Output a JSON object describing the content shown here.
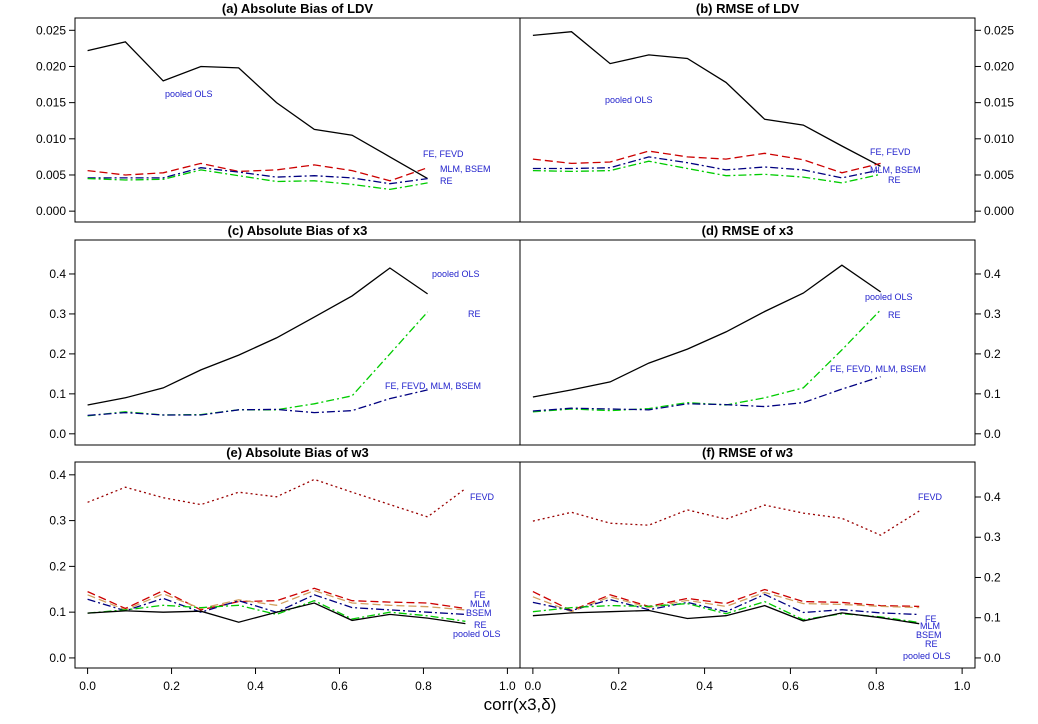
{
  "xlabel": "corr(x3,δ)",
  "chart_data": [
    {
      "type": "line",
      "title": "(a) Absolute Bias of LDV",
      "yaxis_side": "left",
      "xlim": [
        -0.03,
        1.03
      ],
      "ylim": [
        -0.0015,
        0.0267
      ],
      "yticks": [
        {
          "value": 0,
          "label": "0.000"
        },
        {
          "value": 0.005,
          "label": "0.005"
        },
        {
          "value": 0.01,
          "label": "0.010"
        },
        {
          "value": 0.015,
          "label": "0.015"
        },
        {
          "value": 0.02,
          "label": "0.020"
        },
        {
          "value": 0.025,
          "label": "0.025"
        }
      ],
      "x": [
        0,
        0.09,
        0.18,
        0.27,
        0.36,
        0.45,
        0.54,
        0.63,
        0.72,
        0.81
      ],
      "series": [
        {
          "name": "pooled OLS",
          "color": "#000000",
          "linestyle": "solid",
          "values": [
            0.0222,
            0.0234,
            0.018,
            0.02,
            0.0198,
            0.015,
            0.0113,
            0.0105,
            0.0075,
            0.0045
          ]
        },
        {
          "name": "FE, FEVD",
          "color": "#cc0000",
          "linestyle": "dashed",
          "values": [
            0.0056,
            0.005,
            0.0053,
            0.0066,
            0.0055,
            0.0057,
            0.0064,
            0.0056,
            0.0042,
            0.006
          ]
        },
        {
          "name": "MLM, BSEM",
          "color": "#000080",
          "linestyle": "dashdot",
          "values": [
            0.0046,
            0.0046,
            0.0046,
            0.006,
            0.0054,
            0.0047,
            0.0049,
            0.0046,
            0.0038,
            0.0045
          ]
        },
        {
          "name": "RE",
          "color": "#00cc00",
          "linestyle": "dashdot",
          "values": [
            0.0045,
            0.0043,
            0.0044,
            0.0057,
            0.0049,
            0.0041,
            0.0042,
            0.0037,
            0.003,
            0.0039
          ]
        }
      ]
    },
    {
      "type": "line",
      "title": "(b) RMSE of LDV",
      "yaxis_side": "right",
      "xlim": [
        -0.03,
        1.03
      ],
      "ylim": [
        -0.0015,
        0.0267
      ],
      "yticks": [
        {
          "value": 0,
          "label": "0.000"
        },
        {
          "value": 0.005,
          "label": "0.005"
        },
        {
          "value": 0.01,
          "label": "0.010"
        },
        {
          "value": 0.015,
          "label": "0.015"
        },
        {
          "value": 0.02,
          "label": "0.020"
        },
        {
          "value": 0.025,
          "label": "0.025"
        }
      ],
      "x": [
        0,
        0.09,
        0.18,
        0.27,
        0.36,
        0.45,
        0.54,
        0.63,
        0.72,
        0.81
      ],
      "series": [
        {
          "name": "pooled OLS",
          "color": "#000000",
          "linestyle": "solid",
          "values": [
            0.0243,
            0.0248,
            0.0204,
            0.0216,
            0.0211,
            0.0178,
            0.0127,
            0.0119,
            0.009,
            0.0062
          ]
        },
        {
          "name": "FE, FEVD",
          "color": "#cc0000",
          "linestyle": "dashed",
          "values": [
            0.0072,
            0.0066,
            0.0068,
            0.0083,
            0.0075,
            0.0072,
            0.008,
            0.0071,
            0.0053,
            0.0066
          ]
        },
        {
          "name": "MLM, BSEM",
          "color": "#000080",
          "linestyle": "dashdot",
          "values": [
            0.0059,
            0.0059,
            0.006,
            0.0075,
            0.0067,
            0.0057,
            0.0061,
            0.0057,
            0.0046,
            0.0057
          ]
        },
        {
          "name": "RE",
          "color": "#00cc00",
          "linestyle": "dashdot",
          "values": [
            0.0056,
            0.0055,
            0.0056,
            0.0069,
            0.0059,
            0.0049,
            0.0051,
            0.0047,
            0.0039,
            0.0051
          ]
        }
      ]
    },
    {
      "type": "line",
      "title": "(c) Absolute Bias of x3",
      "yaxis_side": "left",
      "xlim": [
        -0.03,
        1.03
      ],
      "ylim": [
        -0.028,
        0.485
      ],
      "yticks": [
        {
          "value": 0,
          "label": "0.0"
        },
        0.1,
        0.2,
        0.3,
        0.4
      ],
      "x": [
        0,
        0.09,
        0.18,
        0.27,
        0.36,
        0.45,
        0.54,
        0.63,
        0.72,
        0.81
      ],
      "series": [
        {
          "name": "pooled OLS",
          "color": "#000000",
          "linestyle": "solid",
          "values": [
            0.072,
            0.09,
            0.115,
            0.16,
            0.197,
            0.24,
            0.292,
            0.345,
            0.415,
            0.35
          ]
        },
        {
          "name": "RE",
          "color": "#00cc00",
          "linestyle": "dashdot",
          "values": [
            0.045,
            0.055,
            0.047,
            0.048,
            0.06,
            0.06,
            0.075,
            0.095,
            0.2,
            0.305
          ]
        },
        {
          "name": "FE, FEVD, MLM, BSEM",
          "color": "#000080",
          "linestyle": "dashdot",
          "values": [
            0.046,
            0.053,
            0.047,
            0.047,
            0.06,
            0.061,
            0.053,
            0.058,
            0.088,
            0.11
          ]
        }
      ]
    },
    {
      "type": "line",
      "title": "(d) RMSE of x3",
      "yaxis_side": "right",
      "xlim": [
        -0.03,
        1.03
      ],
      "ylim": [
        -0.028,
        0.485
      ],
      "yticks": [
        {
          "value": 0,
          "label": "0.0"
        },
        0.1,
        0.2,
        0.3,
        0.4
      ],
      "x": [
        0,
        0.09,
        0.18,
        0.27,
        0.36,
        0.45,
        0.54,
        0.63,
        0.72,
        0.81
      ],
      "series": [
        {
          "name": "pooled OLS",
          "color": "#000000",
          "linestyle": "solid",
          "values": [
            0.092,
            0.11,
            0.13,
            0.177,
            0.212,
            0.255,
            0.306,
            0.352,
            0.422,
            0.355
          ]
        },
        {
          "name": "RE",
          "color": "#00cc00",
          "linestyle": "dashdot",
          "values": [
            0.055,
            0.062,
            0.058,
            0.063,
            0.078,
            0.072,
            0.09,
            0.115,
            0.21,
            0.31
          ]
        },
        {
          "name": "FE, FEVD, MLM, BSEM",
          "color": "#000080",
          "linestyle": "dashdot",
          "values": [
            0.057,
            0.064,
            0.062,
            0.06,
            0.075,
            0.073,
            0.068,
            0.078,
            0.112,
            0.143
          ]
        }
      ]
    },
    {
      "type": "line",
      "title": "(e) Absolute Bias of w3",
      "yaxis_side": "left",
      "xlim": [
        -0.03,
        1.03
      ],
      "ylim": [
        -0.022,
        0.428
      ],
      "yticks": [
        {
          "value": 0,
          "label": "0.0"
        },
        0.1,
        0.2,
        0.3,
        0.4
      ],
      "xticks": [
        {
          "value": 0,
          "label": "0.0"
        },
        0.2,
        0.4,
        0.6,
        0.8,
        {
          "value": 1,
          "label": "1.0"
        }
      ],
      "x": [
        0,
        0.09,
        0.18,
        0.27,
        0.36,
        0.45,
        0.54,
        0.63,
        0.72,
        0.81,
        0.9
      ],
      "series": [
        {
          "name": "FEVD",
          "color": "#990000",
          "linestyle": "dotted",
          "values": [
            0.34,
            0.373,
            0.35,
            0.335,
            0.362,
            0.352,
            0.39,
            0.362,
            0.335,
            0.308,
            0.37
          ]
        },
        {
          "name": "FE",
          "color": "#cc0000",
          "linestyle": "dashed",
          "values": [
            0.145,
            0.108,
            0.147,
            0.105,
            0.123,
            0.125,
            0.152,
            0.125,
            0.122,
            0.12,
            0.108
          ]
        },
        {
          "name": "MLM",
          "color": "#d2a060",
          "linestyle": "dashed",
          "values": [
            0.138,
            0.105,
            0.14,
            0.108,
            0.127,
            0.115,
            0.147,
            0.12,
            0.115,
            0.112,
            0.105
          ]
        },
        {
          "name": "BSEM",
          "color": "#000080",
          "linestyle": "dashdot",
          "values": [
            0.128,
            0.103,
            0.13,
            0.1,
            0.125,
            0.1,
            0.138,
            0.11,
            0.105,
            0.1,
            0.095
          ]
        },
        {
          "name": "RE",
          "color": "#00cc00",
          "linestyle": "dashdot",
          "values": [
            0.098,
            0.105,
            0.115,
            0.11,
            0.115,
            0.095,
            0.125,
            0.085,
            0.1,
            0.092,
            0.08
          ]
        },
        {
          "name": "pooled OLS",
          "color": "#000000",
          "linestyle": "solid",
          "values": [
            0.098,
            0.103,
            0.1,
            0.102,
            0.078,
            0.1,
            0.12,
            0.082,
            0.095,
            0.087,
            0.075
          ]
        }
      ]
    },
    {
      "type": "line",
      "title": "(f) RMSE of w3",
      "yaxis_side": "right",
      "xlim": [
        -0.03,
        1.03
      ],
      "ylim": [
        -0.025,
        0.487
      ],
      "yticks": [
        {
          "value": 0,
          "label": "0.0"
        },
        0.1,
        0.2,
        0.3,
        0.4
      ],
      "xticks": [
        {
          "value": 0,
          "label": "0.0"
        },
        0.2,
        0.4,
        0.6,
        0.8,
        {
          "value": 1,
          "label": "1.0"
        }
      ],
      "x": [
        0,
        0.09,
        0.18,
        0.27,
        0.36,
        0.45,
        0.54,
        0.63,
        0.72,
        0.81,
        0.9
      ],
      "series": [
        {
          "name": "FEVD",
          "color": "#990000",
          "linestyle": "dotted",
          "values": [
            0.34,
            0.362,
            0.335,
            0.33,
            0.368,
            0.345,
            0.38,
            0.36,
            0.347,
            0.305,
            0.365
          ]
        },
        {
          "name": "FE",
          "color": "#cc0000",
          "linestyle": "dashed",
          "values": [
            0.165,
            0.118,
            0.157,
            0.128,
            0.148,
            0.135,
            0.17,
            0.14,
            0.138,
            0.13,
            0.128
          ]
        },
        {
          "name": "MLM",
          "color": "#d2a060",
          "linestyle": "dashed",
          "values": [
            0.152,
            0.115,
            0.152,
            0.125,
            0.143,
            0.128,
            0.163,
            0.135,
            0.133,
            0.128,
            0.125
          ]
        },
        {
          "name": "BSEM",
          "color": "#000080",
          "linestyle": "dashdot",
          "values": [
            0.138,
            0.118,
            0.145,
            0.12,
            0.138,
            0.115,
            0.158,
            0.113,
            0.12,
            0.112,
            0.108
          ]
        },
        {
          "name": "RE",
          "color": "#00cc00",
          "linestyle": "dashdot",
          "values": [
            0.115,
            0.125,
            0.13,
            0.128,
            0.135,
            0.11,
            0.14,
            0.095,
            0.11,
            0.102,
            0.088
          ]
        },
        {
          "name": "pooled OLS",
          "color": "#000000",
          "linestyle": "solid",
          "values": [
            0.105,
            0.112,
            0.115,
            0.118,
            0.098,
            0.105,
            0.13,
            0.092,
            0.112,
            0.1,
            0.085
          ]
        }
      ]
    }
  ]
}
